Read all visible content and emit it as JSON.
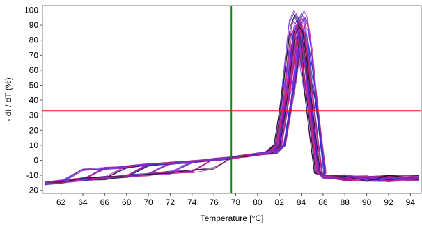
{
  "chart_data": {
    "type": "line",
    "title": "",
    "xlabel": "Temperature [°C]",
    "ylabel": "- dI / dT (%)",
    "xlim": [
      60.3,
      95.0
    ],
    "ylim": [
      -22,
      103
    ],
    "x_ticks": [
      62,
      64,
      66,
      68,
      70,
      72,
      74,
      76,
      78,
      80,
      82,
      84,
      86,
      88,
      90,
      92,
      94
    ],
    "y_ticks": [
      -20,
      -10,
      0,
      10,
      20,
      30,
      40,
      50,
      60,
      70,
      80,
      90,
      100
    ],
    "grid": false,
    "legend": "none",
    "threshold_line": {
      "axis": "y",
      "value": 33,
      "color": "#ee1111"
    },
    "marker_line": {
      "axis": "x",
      "value": 77.6,
      "color": "#118811"
    },
    "series_colors": [
      "#1f2fd0",
      "#7a2bc4",
      "#c8208a",
      "#e0107a",
      "#8a3ad8",
      "#101010",
      "#5a2be0",
      "#b03090"
    ],
    "series_count": 48,
    "series_template": {
      "x": [
        60.5,
        62,
        64,
        66,
        68,
        70,
        72,
        74,
        76,
        77.6,
        79,
        80,
        81,
        81.8,
        82.3,
        82.8,
        83.2,
        83.6,
        83.9,
        84.3,
        84.7,
        85.1,
        85.5,
        86,
        88,
        90,
        92,
        94.8
      ],
      "y": [
        -9,
        -8,
        -6.5,
        -5.5,
        -4.5,
        -3,
        -2,
        -1,
        0.5,
        1.5,
        3,
        4,
        5,
        10,
        32,
        62,
        86,
        92,
        88,
        68,
        40,
        15,
        -8,
        -11,
        -11.5,
        -12,
        -12,
        -12
      ]
    },
    "peak_temperature_range": [
      83.3,
      84.4
    ],
    "peak_height_range": [
      72,
      99
    ],
    "baseline_low": -12,
    "baseline_high": -9
  }
}
